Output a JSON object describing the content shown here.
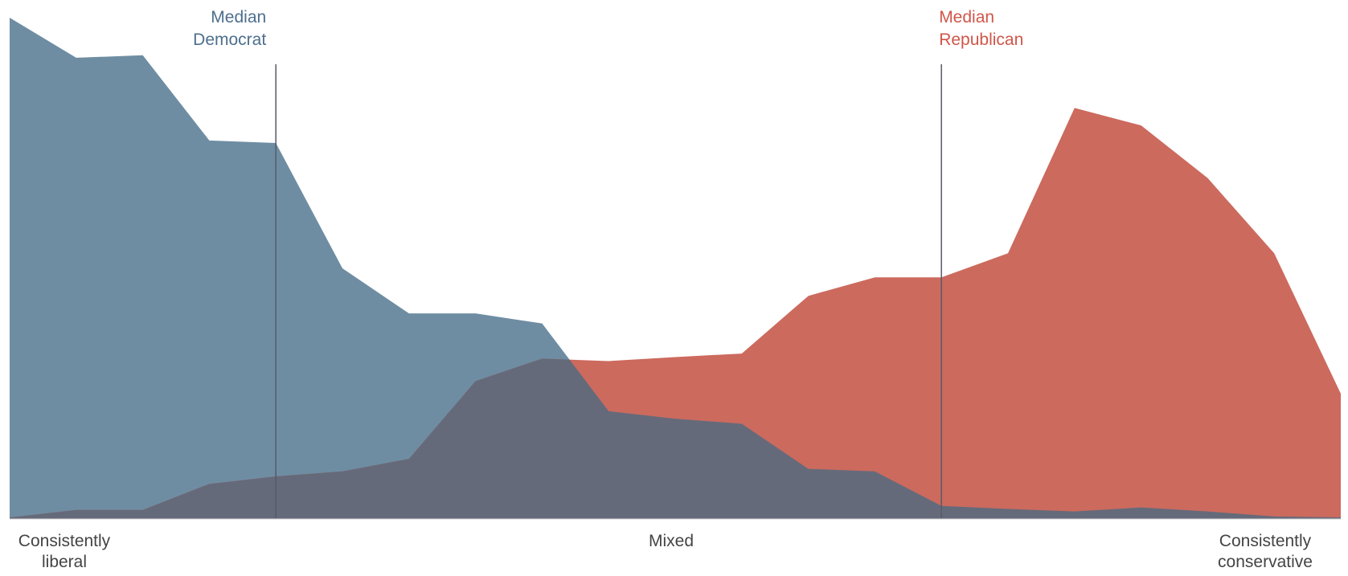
{
  "chart_data": {
    "type": "area",
    "title": "",
    "xlabel": "",
    "ylabel": "",
    "grid": false,
    "legend": "none",
    "x": [
      1,
      2,
      3,
      4,
      5,
      6,
      7,
      8,
      9,
      10,
      11,
      12,
      13,
      14,
      15,
      16,
      17,
      18,
      19,
      20,
      21
    ],
    "ylim": [
      0,
      100
    ],
    "series": [
      {
        "party": "democrat",
        "color": "#6e8da3",
        "values": [
          100,
          92,
          92.5,
          75.5,
          75,
          50,
          41,
          41,
          39,
          21.5,
          20,
          19,
          10,
          9.5,
          2.6,
          2,
          1.5,
          2.3,
          1.5,
          0.5,
          0.3
        ]
      },
      {
        "party": "republican",
        "color": "#cc6a5e",
        "values": [
          0.3,
          1.8,
          1.8,
          7,
          8.5,
          9.5,
          12,
          27.5,
          32,
          31.5,
          32.3,
          33,
          44.5,
          48.2,
          48.2,
          53,
          82,
          78.5,
          68,
          53,
          25
        ]
      }
    ],
    "overlap_color": "#656a7a",
    "medians": [
      {
        "label_line1": "Median",
        "label_line2": "Democrat",
        "x": 5.0,
        "color": "#4d6f8e"
      },
      {
        "label_line1": "Median",
        "label_line2": "Republican",
        "x": 15.0,
        "color": "#d0564a"
      }
    ],
    "axis_labels": {
      "left_line1": "Consistently",
      "left_line2": "liberal",
      "center": "Mixed",
      "right_line1": "Consistently",
      "right_line2": "conservative"
    }
  }
}
